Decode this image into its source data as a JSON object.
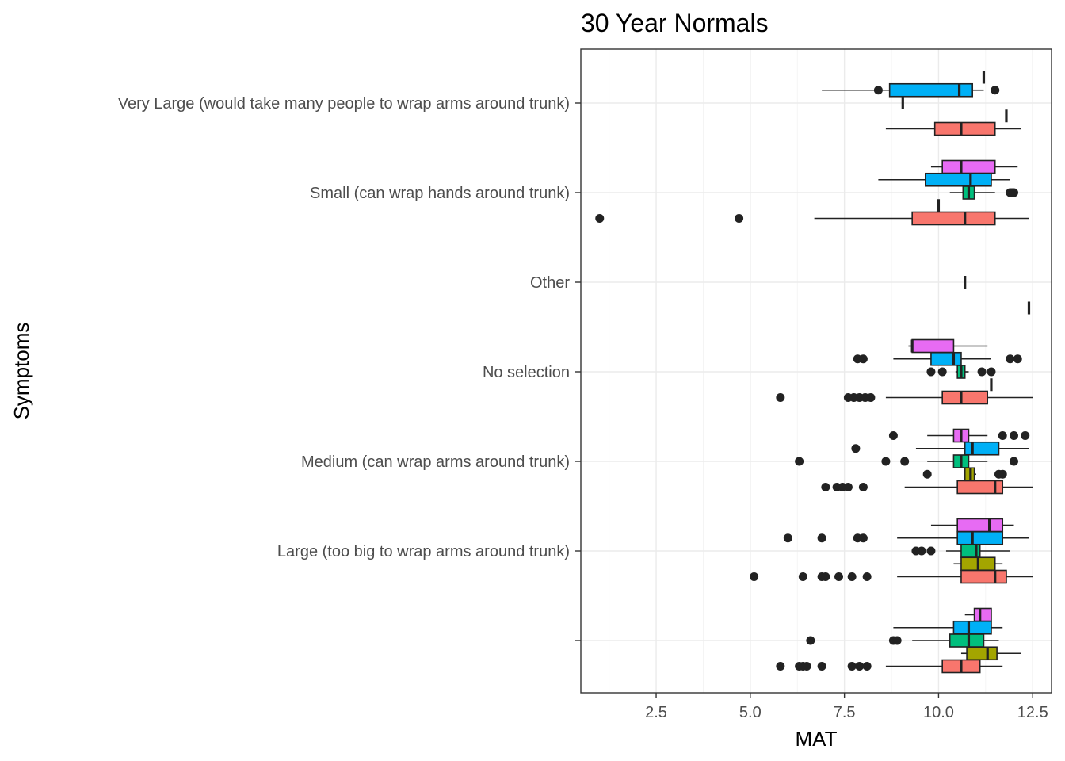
{
  "chart_data": {
    "type": "boxplot",
    "orientation": "horizontal",
    "title": "30 Year Normals",
    "xlabel": "MAT",
    "ylabel": "Symptoms",
    "xlim": [
      0.5,
      13.0
    ],
    "x_ticks": [
      2.5,
      5.0,
      7.5,
      10.0,
      12.5
    ],
    "x_tick_labels": [
      "2.5",
      "5.0",
      "7.5",
      "10.0",
      "12.5"
    ],
    "grid": true,
    "legend": "none",
    "categories": [
      "Very Large (would take many people to wrap arms around trunk)",
      "Small (can wrap hands around trunk)",
      "Other",
      "No selection",
      "Medium (can wrap arms around trunk)",
      "Large (too big to wrap arms around trunk)",
      ""
    ],
    "group_colors": {
      "red": "#F8766D",
      "olive": "#A3A500",
      "green": "#00BF7D",
      "blue": "#00B0F6",
      "magenta": "#E76BF3"
    },
    "boxes": [
      {
        "category": 0,
        "group": "red",
        "offset": 1,
        "min": 8.6,
        "q1": 9.9,
        "median": 10.6,
        "q3": 11.5,
        "max": 12.2,
        "outliers": []
      },
      {
        "category": 0,
        "group": "olive",
        "offset": 0.5,
        "min": 11.8,
        "q1": 11.8,
        "median": 11.8,
        "q3": 11.8,
        "max": 11.8,
        "outliers": []
      },
      {
        "category": 0,
        "group": "green",
        "offset": 0,
        "min": 9.05,
        "q1": 9.05,
        "median": 9.05,
        "q3": 9.05,
        "max": 9.05,
        "outliers": []
      },
      {
        "category": 0,
        "group": "blue",
        "offset": -0.5,
        "min": 6.9,
        "q1": 8.7,
        "median": 10.55,
        "q3": 10.9,
        "max": 11.2,
        "outliers": [
          8.4,
          11.5
        ]
      },
      {
        "category": 0,
        "group": "magenta",
        "offset": -1,
        "min": 11.2,
        "q1": 11.2,
        "median": 11.2,
        "q3": 11.2,
        "max": 11.2,
        "outliers": []
      },
      {
        "category": 1,
        "group": "red",
        "offset": 1,
        "min": 6.7,
        "q1": 9.3,
        "median": 10.7,
        "q3": 11.5,
        "max": 12.4,
        "outliers": [
          1.0,
          4.7
        ]
      },
      {
        "category": 1,
        "group": "olive",
        "offset": 0.5,
        "min": 10.0,
        "q1": 10.0,
        "median": 10.0,
        "q3": 10.0,
        "max": 10.0,
        "outliers": []
      },
      {
        "category": 1,
        "group": "green",
        "offset": 0,
        "min": 10.3,
        "q1": 10.65,
        "median": 10.8,
        "q3": 10.95,
        "max": 11.5,
        "outliers": [
          11.9,
          11.95,
          12.0
        ]
      },
      {
        "category": 1,
        "group": "blue",
        "offset": -0.5,
        "min": 8.4,
        "q1": 9.65,
        "median": 10.85,
        "q3": 11.4,
        "max": 11.9,
        "outliers": []
      },
      {
        "category": 1,
        "group": "magenta",
        "offset": -1,
        "min": 9.8,
        "q1": 10.1,
        "median": 10.6,
        "q3": 11.5,
        "max": 12.1,
        "outliers": []
      },
      {
        "category": 2,
        "group": "red",
        "offset": 1,
        "min": 12.4,
        "q1": 12.4,
        "median": 12.4,
        "q3": 12.4,
        "max": 12.4,
        "outliers": []
      },
      {
        "category": 2,
        "group": "blue",
        "offset": -0.0,
        "min": 10.7,
        "q1": 10.7,
        "median": 10.7,
        "q3": 10.7,
        "max": 10.7,
        "outliers": []
      },
      {
        "category": 3,
        "group": "red",
        "offset": 1,
        "min": 8.6,
        "q1": 10.1,
        "median": 10.6,
        "q3": 11.3,
        "max": 12.5,
        "outliers": [
          5.8,
          7.6,
          7.75,
          7.9,
          8.05,
          8.2
        ]
      },
      {
        "category": 3,
        "group": "olive",
        "offset": 0.5,
        "min": 11.4,
        "q1": 11.4,
        "median": 11.4,
        "q3": 11.4,
        "max": 11.4,
        "outliers": []
      },
      {
        "category": 3,
        "group": "green",
        "offset": 0,
        "min": 10.45,
        "q1": 10.5,
        "median": 10.6,
        "q3": 10.7,
        "max": 10.8,
        "outliers": [
          9.8,
          10.1,
          11.15,
          11.4
        ]
      },
      {
        "category": 3,
        "group": "blue",
        "offset": -0.5,
        "min": 8.8,
        "q1": 9.8,
        "median": 10.4,
        "q3": 10.6,
        "max": 11.4,
        "outliers": [
          7.85,
          8.0,
          11.9,
          12.1
        ]
      },
      {
        "category": 3,
        "group": "magenta",
        "offset": -1,
        "min": 9.2,
        "q1": 9.3,
        "median": 9.3,
        "q3": 10.4,
        "max": 11.3,
        "outliers": []
      },
      {
        "category": 4,
        "group": "red",
        "offset": 1,
        "min": 9.1,
        "q1": 10.5,
        "median": 11.5,
        "q3": 11.7,
        "max": 12.5,
        "outliers": [
          7.0,
          7.3,
          7.45,
          7.6,
          8.0
        ]
      },
      {
        "category": 4,
        "group": "olive",
        "offset": 0.5,
        "min": 10.7,
        "q1": 10.7,
        "median": 10.85,
        "q3": 10.95,
        "max": 11.0,
        "outliers": [
          9.7,
          11.6,
          11.7
        ]
      },
      {
        "category": 4,
        "group": "green",
        "offset": 0,
        "min": 9.7,
        "q1": 10.4,
        "median": 10.6,
        "q3": 10.8,
        "max": 11.3,
        "outliers": [
          6.3,
          8.6,
          9.1,
          12.0
        ]
      },
      {
        "category": 4,
        "group": "blue",
        "offset": -0.5,
        "min": 9.4,
        "q1": 10.7,
        "median": 10.9,
        "q3": 11.6,
        "max": 12.4,
        "outliers": [
          7.8
        ]
      },
      {
        "category": 4,
        "group": "magenta",
        "offset": -1,
        "min": 9.7,
        "q1": 10.4,
        "median": 10.6,
        "q3": 10.8,
        "max": 11.3,
        "outliers": [
          8.8,
          11.7,
          12.0,
          12.3
        ]
      },
      {
        "category": 5,
        "group": "red",
        "offset": 1,
        "min": 8.9,
        "q1": 10.6,
        "median": 11.5,
        "q3": 11.8,
        "max": 12.5,
        "outliers": [
          5.1,
          6.4,
          6.9,
          7.0,
          7.35,
          7.7,
          8.1
        ]
      },
      {
        "category": 5,
        "group": "olive",
        "offset": 0.5,
        "min": 10.4,
        "q1": 10.6,
        "median": 11.05,
        "q3": 11.5,
        "max": 11.7,
        "outliers": []
      },
      {
        "category": 5,
        "group": "green",
        "offset": 0,
        "min": 10.2,
        "q1": 10.6,
        "median": 11.0,
        "q3": 11.1,
        "max": 11.9,
        "outliers": [
          9.4,
          9.55,
          9.8
        ]
      },
      {
        "category": 5,
        "group": "blue",
        "offset": -0.5,
        "min": 8.9,
        "q1": 10.5,
        "median": 10.9,
        "q3": 11.7,
        "max": 12.4,
        "outliers": [
          6.0,
          6.9,
          7.85,
          8.0
        ]
      },
      {
        "category": 5,
        "group": "magenta",
        "offset": -1,
        "min": 9.8,
        "q1": 10.5,
        "median": 11.35,
        "q3": 11.7,
        "max": 12.0,
        "outliers": []
      },
      {
        "category": 6,
        "group": "red",
        "offset": 1,
        "min": 8.6,
        "q1": 10.1,
        "median": 10.6,
        "q3": 11.1,
        "max": 11.7,
        "outliers": [
          5.8,
          6.3,
          6.4,
          6.5,
          6.9,
          7.7,
          7.9,
          8.1
        ]
      },
      {
        "category": 6,
        "group": "olive",
        "offset": 0.5,
        "min": 10.6,
        "q1": 10.75,
        "median": 11.3,
        "q3": 11.55,
        "max": 12.2,
        "outliers": []
      },
      {
        "category": 6,
        "group": "green",
        "offset": 0,
        "min": 9.3,
        "q1": 10.3,
        "median": 10.8,
        "q3": 11.2,
        "max": 11.6,
        "outliers": [
          6.6,
          8.8,
          8.9
        ]
      },
      {
        "category": 6,
        "group": "blue",
        "offset": -0.5,
        "min": 8.8,
        "q1": 10.4,
        "median": 10.8,
        "q3": 11.4,
        "max": 11.7,
        "outliers": []
      },
      {
        "category": 6,
        "group": "magenta",
        "offset": -1,
        "min": 10.7,
        "q1": 10.95,
        "median": 11.1,
        "q3": 11.4,
        "max": 11.4,
        "outliers": []
      }
    ]
  }
}
